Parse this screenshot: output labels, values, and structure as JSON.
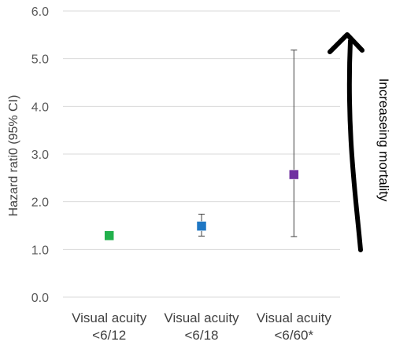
{
  "chart_data": {
    "type": "scatter",
    "ylabel": "Hazard rati0 (95% CI)",
    "ylim": [
      0,
      6
    ],
    "yticks": [
      "0.0",
      "1.0",
      "2.0",
      "3.0",
      "4.0",
      "5.0",
      "6.0"
    ],
    "grid": true,
    "legend": "none",
    "categories": [
      [
        "Visual acuity",
        "<6/12"
      ],
      [
        "Visual acuity",
        "<6/18"
      ],
      [
        "Visual acuity",
        "<6/60*"
      ]
    ],
    "points": [
      {
        "value": 1.29,
        "ci_low": 1.29,
        "ci_high": 1.29,
        "color": "#22b14c"
      },
      {
        "value": 1.49,
        "ci_low": 1.28,
        "ci_high": 1.74,
        "color": "#1f77c4"
      },
      {
        "value": 2.57,
        "ci_low": 1.27,
        "ci_high": 5.18,
        "color": "#7030a0"
      }
    ],
    "annotation": {
      "text": "Increaseing mortality",
      "arrow_direction": "up",
      "arrow_color": "#000000"
    }
  }
}
